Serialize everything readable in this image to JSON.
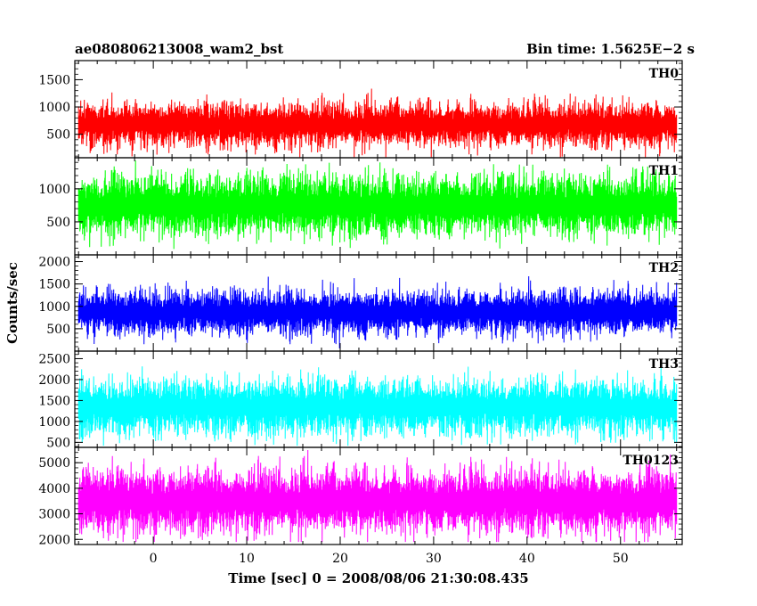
{
  "header": {
    "left_title": "ae080806213008_wam2_bst",
    "right_title": "Bin time: 1.5625E−2 s"
  },
  "chart_data": {
    "type": "line",
    "ylabel": "Counts/sec",
    "xlabel": "Time [sec] 0 = 2008/08/06 21:30:08.435",
    "xlim": [
      -8.4,
      56.6
    ],
    "x_ticks": [
      0,
      10,
      20,
      30,
      40,
      50
    ],
    "x_data_range": [
      -8.0,
      56.0
    ],
    "bin_time": 0.015625,
    "panels": [
      {
        "name": "TH0",
        "color": "#ff0000",
        "ylim": [
          70,
          1850
        ],
        "yticks": [
          500,
          1000,
          1500
        ],
        "mean": 680,
        "sd": 230,
        "min": 80,
        "max": 1820
      },
      {
        "name": "TH1",
        "color": "#00ff00",
        "ylim": [
          0,
          1470
        ],
        "yticks": [
          500,
          1000
        ],
        "mean": 750,
        "sd": 260,
        "min": 60,
        "max": 1450
      },
      {
        "name": "TH2",
        "color": "#0000ff",
        "ylim": [
          0,
          2150
        ],
        "yticks": [
          500,
          1000,
          1500,
          2000
        ],
        "mean": 860,
        "sd": 280,
        "min": 60,
        "max": 2120
      },
      {
        "name": "TH3",
        "color": "#00ffff",
        "ylim": [
          380,
          2680
        ],
        "yticks": [
          500,
          1000,
          1500,
          2000,
          2500
        ],
        "mean": 1350,
        "sd": 380,
        "min": 420,
        "max": 2650
      },
      {
        "name": "TH0123",
        "color": "#ff00ff",
        "ylim": [
          1800,
          5600
        ],
        "yticks": [
          2000,
          3000,
          4000,
          5000
        ],
        "mean": 3500,
        "sd": 700,
        "min": 1900,
        "max": 5500
      }
    ]
  }
}
